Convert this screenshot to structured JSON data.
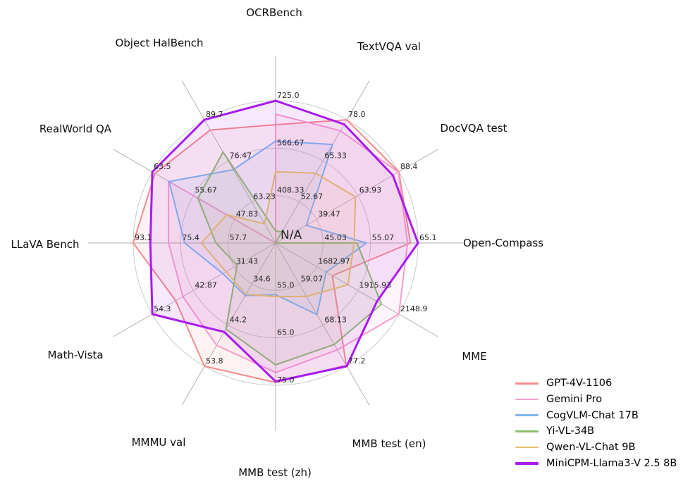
{
  "figure": {
    "background": "#ffffff",
    "grid_color": "#c9c9c9",
    "spoke_color": "#adadad",
    "tick_color": "#262626",
    "center_label": "N/A"
  },
  "chart_data": {
    "type": "radar",
    "title": "",
    "grid": true,
    "legend_position": "lower right",
    "center_label": "N/A",
    "axes": [
      {
        "label": "OCRBench",
        "min": 250,
        "max": 725,
        "ticks": [
          "408.33",
          "566.67",
          "725.0"
        ]
      },
      {
        "label": "TextVQA val",
        "min": 40,
        "max": 78.0,
        "ticks": [
          "52.67",
          "65.33",
          "78.0"
        ]
      },
      {
        "label": "DocVQA test",
        "min": 15,
        "max": 88.4,
        "ticks": [
          "39.47",
          "63.93",
          "88.4"
        ]
      },
      {
        "label": "Open-Compass",
        "min": 35,
        "max": 65.1,
        "ticks": [
          "45.03",
          "55.07",
          "65.1"
        ]
      },
      {
        "label": "MME",
        "min": 1450,
        "max": 2148.9,
        "ticks": [
          "1682.97",
          "1915.93",
          "2148.9"
        ]
      },
      {
        "label": "MMB test (en)",
        "min": 50,
        "max": 77.2,
        "ticks": [
          "59.07",
          "68.13",
          "77.2"
        ]
      },
      {
        "label": "MMB test (zh)",
        "min": 45,
        "max": 75.0,
        "ticks": [
          "55.0",
          "65.0",
          "75.0"
        ]
      },
      {
        "label": "MMMU val",
        "min": 25,
        "max": 53.8,
        "ticks": [
          "34.6",
          "44.2",
          "53.8"
        ]
      },
      {
        "label": "Math-Vista",
        "min": 20,
        "max": 54.3,
        "ticks": [
          "31.43",
          "42.87",
          "54.3"
        ]
      },
      {
        "label": "LLaVA Bench",
        "min": 40,
        "max": 93.1,
        "ticks": [
          "57.7",
          "75.4",
          "93.1"
        ]
      },
      {
        "label": "RealWorld QA",
        "min": 40,
        "max": 63.5,
        "ticks": [
          "47.83",
          "55.67",
          "63.5"
        ]
      },
      {
        "label": "Object HalBench",
        "min": 50,
        "max": 89.7,
        "ticks": [
          "63.23",
          "76.47",
          "89.7"
        ]
      }
    ],
    "series": [
      {
        "name": "GPT-4V-1106",
        "color": "#F48C8C",
        "line_width": 2,
        "values": [
          645,
          78.0,
          88.4,
          63.5,
          1771.5,
          77.0,
          74.4,
          53.8,
          47.8,
          93.1,
          63.0,
          86.4
        ]
      },
      {
        "name": "Gemini Pro",
        "color": "#F99DCD",
        "line_width": 2,
        "values": [
          680,
          74.6,
          88.1,
          62.9,
          2148.9,
          73.6,
          72.3,
          48.9,
          45.8,
          79.9,
          60.4,
          "N/A"
        ]
      },
      {
        "name": "CogVLM-Chat 17B",
        "color": "#7FB6EF",
        "line_width": 2,
        "values": [
          590,
          70.4,
          33.3,
          54.2,
          1736.6,
          65.8,
          55.9,
          37.3,
          34.7,
          73.9,
          60.3,
          73.6
        ]
      },
      {
        "name": "Yi-VL-34B",
        "color": "#8FBC6F",
        "line_width": 2,
        "values": [
          290,
          43.4,
          "N/A",
          52.2,
          2050.2,
          72.4,
          70.7,
          45.1,
          30.7,
          62.3,
          54.8,
          79.3
        ]
      },
      {
        "name": "Qwen-VL-Chat 9B",
        "color": "#E6C06A",
        "line_width": 2,
        "values": [
          488,
          61.5,
          62.6,
          51.6,
          1860.0,
          61.8,
          56.3,
          37.0,
          33.8,
          67.7,
          49.3,
          56.2
        ]
      },
      {
        "name": "MiniCPM-Llama3-V 2.5 8B",
        "color": "#A91BF0",
        "line_width": 3,
        "values": [
          725,
          76.6,
          84.8,
          65.1,
          2024.6,
          77.2,
          74.2,
          45.8,
          54.3,
          86.7,
          63.5,
          89.7
        ]
      }
    ]
  }
}
